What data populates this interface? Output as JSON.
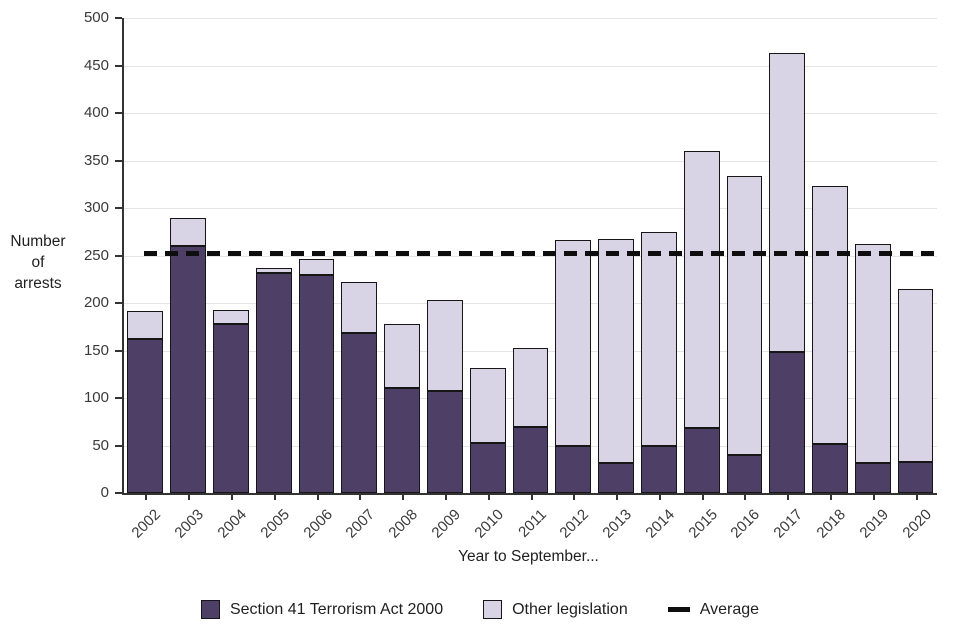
{
  "chart_data": {
    "type": "bar",
    "stacked": true,
    "title": "",
    "xlabel": "Year to September...",
    "ylabel": "Number of arrests",
    "ylim": [
      0,
      500
    ],
    "ytick_step": 50,
    "grid": "horizontal",
    "legend_position": "bottom",
    "categories": [
      "2002",
      "2003",
      "2004",
      "2005",
      "2006",
      "2007",
      "2008",
      "2009",
      "2010",
      "2011",
      "2012",
      "2013",
      "2014",
      "2015",
      "2016",
      "2017",
      "2018",
      "2019",
      "2020"
    ],
    "series": [
      {
        "name": "Section 41 Terrorism Act 2000",
        "color": "#4e3f66",
        "values": [
          162,
          260,
          178,
          232,
          230,
          168,
          111,
          107,
          53,
          70,
          50,
          32,
          49,
          68,
          40,
          148,
          52,
          32,
          33
        ]
      },
      {
        "name": "Other legislation",
        "color": "#d8d3e5",
        "values": [
          30,
          29,
          15,
          5,
          16,
          54,
          67,
          96,
          79,
          83,
          216,
          235,
          226,
          292,
          294,
          315,
          271,
          230,
          182
        ]
      }
    ],
    "totals": [
      192,
      289,
      193,
      237,
      246,
      222,
      178,
      203,
      132,
      153,
      266,
      267,
      275,
      360,
      334,
      463,
      323,
      262,
      215
    ],
    "average_line": {
      "label": "Average",
      "value": 252,
      "color": "#0e0e0e"
    }
  }
}
